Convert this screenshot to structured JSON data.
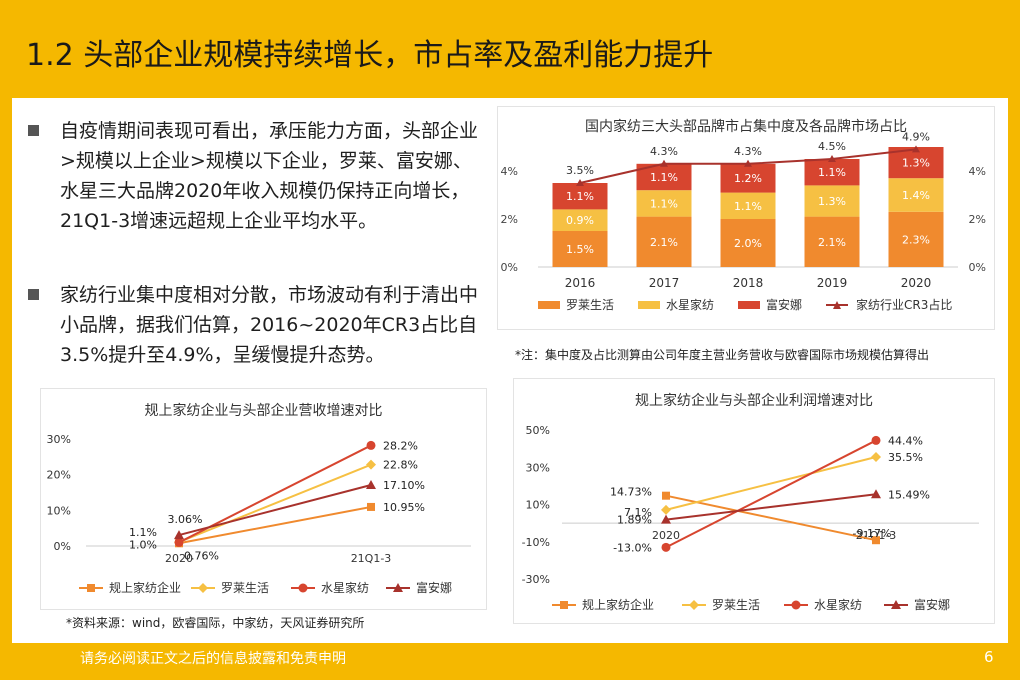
{
  "header": {
    "title": "1.2 头部企业规模持续增长，市占率及盈利能力提升"
  },
  "bullets": [
    {
      "text": "自疫情期间表现可看出，承压能力方面，头部企业>规模以上企业>规模以下企业，罗莱、富安娜、水星三大品牌2020年收入规模仍保持正向增长，21Q1-3增速远超规上企业平均水平。"
    },
    {
      "text": "家纺行业集中度相对分散，市场波动有利于清出中小品牌，据我们估算，2016~2020年CR3占比自3.5%提升至4.9%，呈缓慢提升态势。"
    }
  ],
  "notes": {
    "chart1_note": "*注：集中度及占比测算由公司年度主营业务营收与欧睿国际市场规模估算得出",
    "source": "*资料来源：wind，欧睿国际，中家纺，天风证券研究所"
  },
  "footer": {
    "disclaimer": "请务必阅读正文之后的信息披露和免责申明",
    "page": "6"
  },
  "colors": {
    "background": "#F5B800",
    "luolai": "#F08A2E",
    "shuixing": "#F6C043",
    "fuanna": "#D7452F",
    "cr3": "#A8322C",
    "guishang": "#F08A2E"
  },
  "chart_data": [
    {
      "type": "bar",
      "title": "国内家纺三大头部品牌市占集中度及各品牌市场占比",
      "categories": [
        "2016",
        "2017",
        "2018",
        "2019",
        "2020"
      ],
      "stacked": true,
      "series": [
        {
          "name": "罗莱生活",
          "values": [
            1.5,
            2.1,
            2.0,
            2.1,
            2.3
          ],
          "labels": [
            "1.5%",
            "2.1%",
            "2.0%",
            "2.1%",
            "2.3%"
          ]
        },
        {
          "name": "水星家纺",
          "values": [
            0.9,
            1.1,
            1.1,
            1.3,
            1.4
          ],
          "labels": [
            "0.9%",
            "1.1%",
            "1.1%",
            "1.3%",
            "1.4%"
          ]
        },
        {
          "name": "富安娜",
          "values": [
            1.1,
            1.1,
            1.2,
            1.1,
            1.3
          ],
          "labels": [
            "1.1%",
            "1.1%",
            "1.2%",
            "1.1%",
            "1.3%"
          ]
        },
        {
          "name": "家纺行业CR3占比",
          "type": "line",
          "values": [
            3.5,
            4.3,
            4.3,
            4.5,
            4.9
          ],
          "labels": [
            "3.5%",
            "4.3%",
            "4.3%",
            "4.5%",
            "4.9%"
          ]
        }
      ],
      "yticks": [
        "0%",
        "2%",
        "4%"
      ],
      "y2ticks": [
        "0%",
        "2%",
        "4%"
      ],
      "ylim": [
        0,
        5
      ],
      "legend": "bottom"
    },
    {
      "type": "line",
      "title": "规上家纺企业与头部企业营收增速对比",
      "categories": [
        "2020",
        "21Q1-3"
      ],
      "series": [
        {
          "name": "规上家纺企业",
          "values": [
            0.76,
            10.95
          ],
          "labels": [
            "0.76%",
            "10.95%"
          ]
        },
        {
          "name": "罗莱生活",
          "values": [
            1.1,
            22.8
          ],
          "labels": [
            "1.1%",
            "22.8%"
          ]
        },
        {
          "name": "水星家纺",
          "values": [
            1.0,
            28.2
          ],
          "labels": [
            "1.0%",
            "28.2%"
          ]
        },
        {
          "name": "富安娜",
          "values": [
            3.06,
            17.1
          ],
          "labels": [
            "3.06%",
            "17.10%"
          ]
        }
      ],
      "yticks": [
        "0%",
        "10%",
        "20%",
        "30%"
      ],
      "ylim": [
        0,
        30
      ],
      "legend": "bottom"
    },
    {
      "type": "line",
      "title": "规上家纺企业与头部企业利润增速对比",
      "categories": [
        "2020",
        "21Q1-3"
      ],
      "series": [
        {
          "name": "规上家纺企业",
          "values": [
            14.73,
            -9.17
          ],
          "labels": [
            "14.73%",
            "-9.17%"
          ]
        },
        {
          "name": "罗莱生活",
          "values": [
            7.1,
            35.5
          ],
          "labels": [
            "7.1%",
            "35.5%"
          ]
        },
        {
          "name": "水星家纺",
          "values": [
            -13.0,
            44.4
          ],
          "labels": [
            "-13.0%",
            "44.4%"
          ]
        },
        {
          "name": "富安娜",
          "values": [
            1.89,
            15.49
          ],
          "labels": [
            "1.89%",
            "15.49%"
          ]
        }
      ],
      "yticks": [
        "-30%",
        "-10%",
        "10%",
        "30%",
        "50%"
      ],
      "ylim": [
        -30,
        50
      ],
      "legend": "bottom"
    }
  ]
}
